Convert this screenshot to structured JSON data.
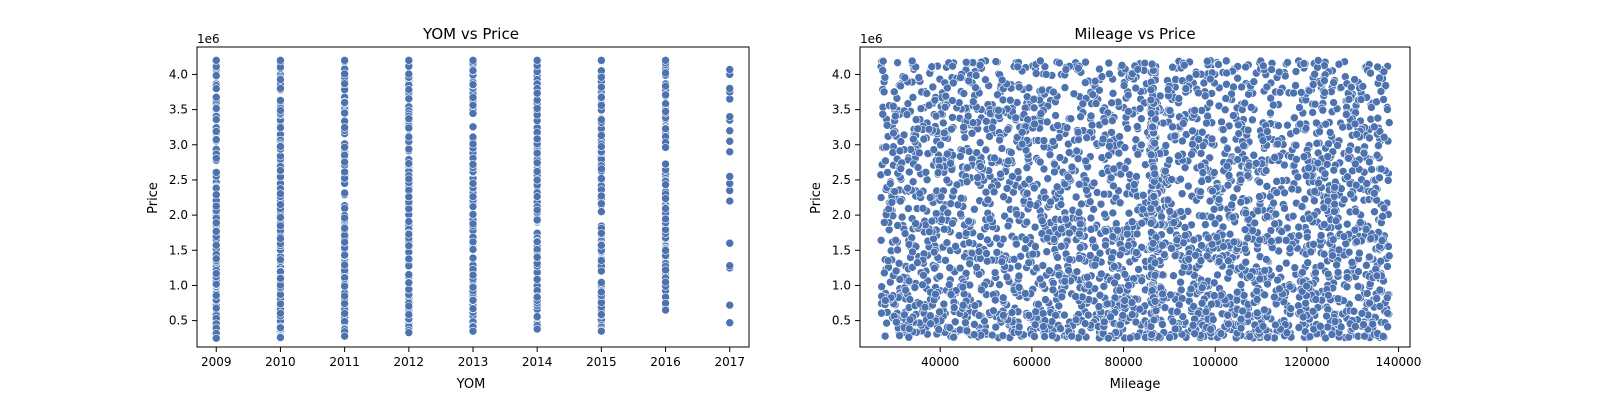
{
  "chart_data": [
    {
      "type": "scatter",
      "title": "YOM vs Price",
      "xlabel": "YOM",
      "ylabel": "Price",
      "y_offset_label": "1e6",
      "xlim": [
        2008.7,
        2017.3
      ],
      "ylim": [
        125000,
        4390000
      ],
      "xticks": [
        2009,
        2010,
        2011,
        2012,
        2013,
        2014,
        2015,
        2016,
        2017
      ],
      "yticks": [
        500000,
        1000000,
        1500000,
        2000000,
        2500000,
        3000000,
        3500000,
        4000000
      ],
      "ytick_labels": [
        "0.5",
        "1.0",
        "1.5",
        "2.0",
        "2.5",
        "3.0",
        "3.5",
        "4.0"
      ],
      "marker_color": "#4c72b0",
      "marker_edge_color": "#ffffff",
      "grid": false,
      "series_by_year": [
        {
          "x": 2009,
          "y_range": [
            250000,
            4200000
          ]
        },
        {
          "x": 2010,
          "y_range": [
            260000,
            4200000
          ]
        },
        {
          "x": 2011,
          "y_range": [
            280000,
            4200000
          ]
        },
        {
          "x": 2012,
          "y_range": [
            330000,
            4200000
          ]
        },
        {
          "x": 2013,
          "y_range": [
            350000,
            4200000
          ]
        },
        {
          "x": 2014,
          "y_range": [
            380000,
            4200000
          ]
        },
        {
          "x": 2015,
          "y_range": [
            350000,
            4200000
          ]
        },
        {
          "x": 2016,
          "y_range": [
            650000,
            4200000
          ]
        },
        {
          "x": 2017,
          "y": [
            470000,
            720000,
            1250000,
            1280000,
            1600000,
            2200000,
            2350000,
            2450000,
            2550000,
            2900000,
            3050000,
            3200000,
            3350000,
            3400000,
            3650000,
            3750000,
            3800000,
            4000000,
            4070000
          ]
        }
      ]
    },
    {
      "type": "scatter",
      "title": "Mileage vs Price",
      "xlabel": "Mileage",
      "ylabel": "Price",
      "y_offset_label": "1e6",
      "xlim": [
        22500,
        142500
      ],
      "ylim": [
        125000,
        4390000
      ],
      "xticks": [
        40000,
        60000,
        80000,
        100000,
        120000,
        140000
      ],
      "yticks": [
        500000,
        1000000,
        1500000,
        2000000,
        2500000,
        3000000,
        3500000,
        4000000
      ],
      "ytick_labels": [
        "0.5",
        "1.0",
        "1.5",
        "2.0",
        "2.5",
        "3.0",
        "3.5",
        "4.0"
      ],
      "marker_color": "#4c72b0",
      "marker_edge_color": "#ffffff",
      "grid": false,
      "x_range": [
        27000,
        138000
      ],
      "y_range": [
        250000,
        4200000
      ]
    }
  ]
}
